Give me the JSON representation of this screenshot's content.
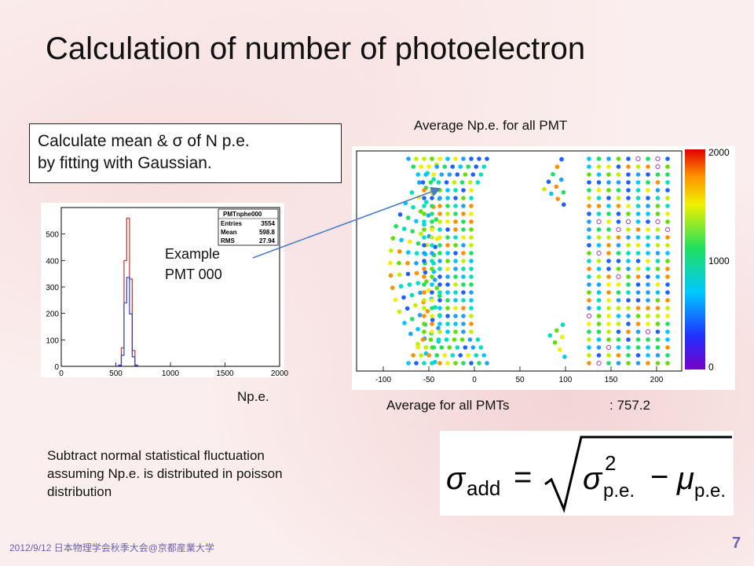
{
  "slide": {
    "title": "Calculation of number of photoelectron",
    "callout": {
      "line1": "Calculate mean & σ of N p.e.",
      "line2": "by fitting with Gaussian."
    },
    "histogram": {
      "x_label": "Np.e.",
      "stats_box": {
        "name": "PMTnphe000",
        "rows": [
          {
            "label": "Entries",
            "value": "3554"
          },
          {
            "label": "Mean",
            "value": "598.8"
          },
          {
            "label": "RMS",
            "value": "27.94"
          }
        ]
      }
    },
    "example": {
      "line1": "Example",
      "line2": "PMT 000"
    },
    "map": {
      "title": "Average Np.e. for all PMT",
      "colorbar_labels": [
        "2000",
        "1000",
        "0"
      ]
    },
    "average": {
      "label": "Average for all PMTs",
      "value": ": 757.2"
    },
    "subtract": {
      "line1": "Subtract normal statistical fluctuation",
      "line2": "assuming Np.e. is distributed in poisson",
      "line3": "distribution"
    },
    "formula": {
      "sigma": "σ",
      "sub_add": "add",
      "equals": "=",
      "sigma2": "σ",
      "sup": "2",
      "sub_pe": "p.e.",
      "minus": "−",
      "mu": "μ",
      "sub_pe2": "p.e."
    },
    "footer": "2012/9/12 日本物理学会秋季大会@京都産業大学",
    "page_number": "7"
  },
  "chart_data": [
    {
      "type": "bar",
      "x": [
        500,
        525,
        550,
        575,
        600,
        625,
        650,
        675,
        700
      ],
      "values": [
        0,
        5,
        70,
        400,
        560,
        330,
        60,
        5,
        0
      ],
      "xlim": [
        0,
        2000
      ],
      "ylim": [
        0,
        600
      ],
      "x_ticks": [
        0,
        500,
        1000,
        1500,
        2000
      ],
      "y_ticks": [
        0,
        100,
        200,
        300,
        400,
        500
      ],
      "series_colors": [
        "#d03030",
        "#3040c8"
      ]
    },
    {
      "type": "scatter",
      "x_ticks": [
        -100,
        -50,
        0,
        50,
        100,
        150,
        200
      ],
      "colorbar_range": [
        0,
        2000
      ]
    }
  ]
}
